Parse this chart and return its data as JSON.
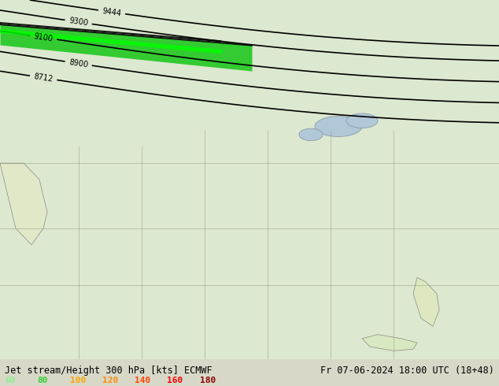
{
  "title_left": "Jet stream/Height 300 hPa [kts] ECMWF",
  "title_right": "Fr 07-06-2024 18:00 UTC (18+48)",
  "legend_values": [
    60,
    80,
    100,
    120,
    140,
    160,
    180
  ],
  "legend_colors": [
    "#90ee90",
    "#32cd32",
    "#ffa500",
    "#ff8c00",
    "#ff4500",
    "#ff0000",
    "#8b0000"
  ],
  "colorbar_colors": [
    "#e8f5e8",
    "#c8e8c8",
    "#90ee90",
    "#32cd32",
    "#9acd32",
    "#ffd700",
    "#ffa500",
    "#ff8c00",
    "#ff4500",
    "#ff0000"
  ],
  "bg_color": "#f0f0e8",
  "map_bg": "#e8e8d8",
  "font_color_title": "#000000",
  "fig_width": 6.34,
  "fig_height": 4.9,
  "dpi": 100
}
